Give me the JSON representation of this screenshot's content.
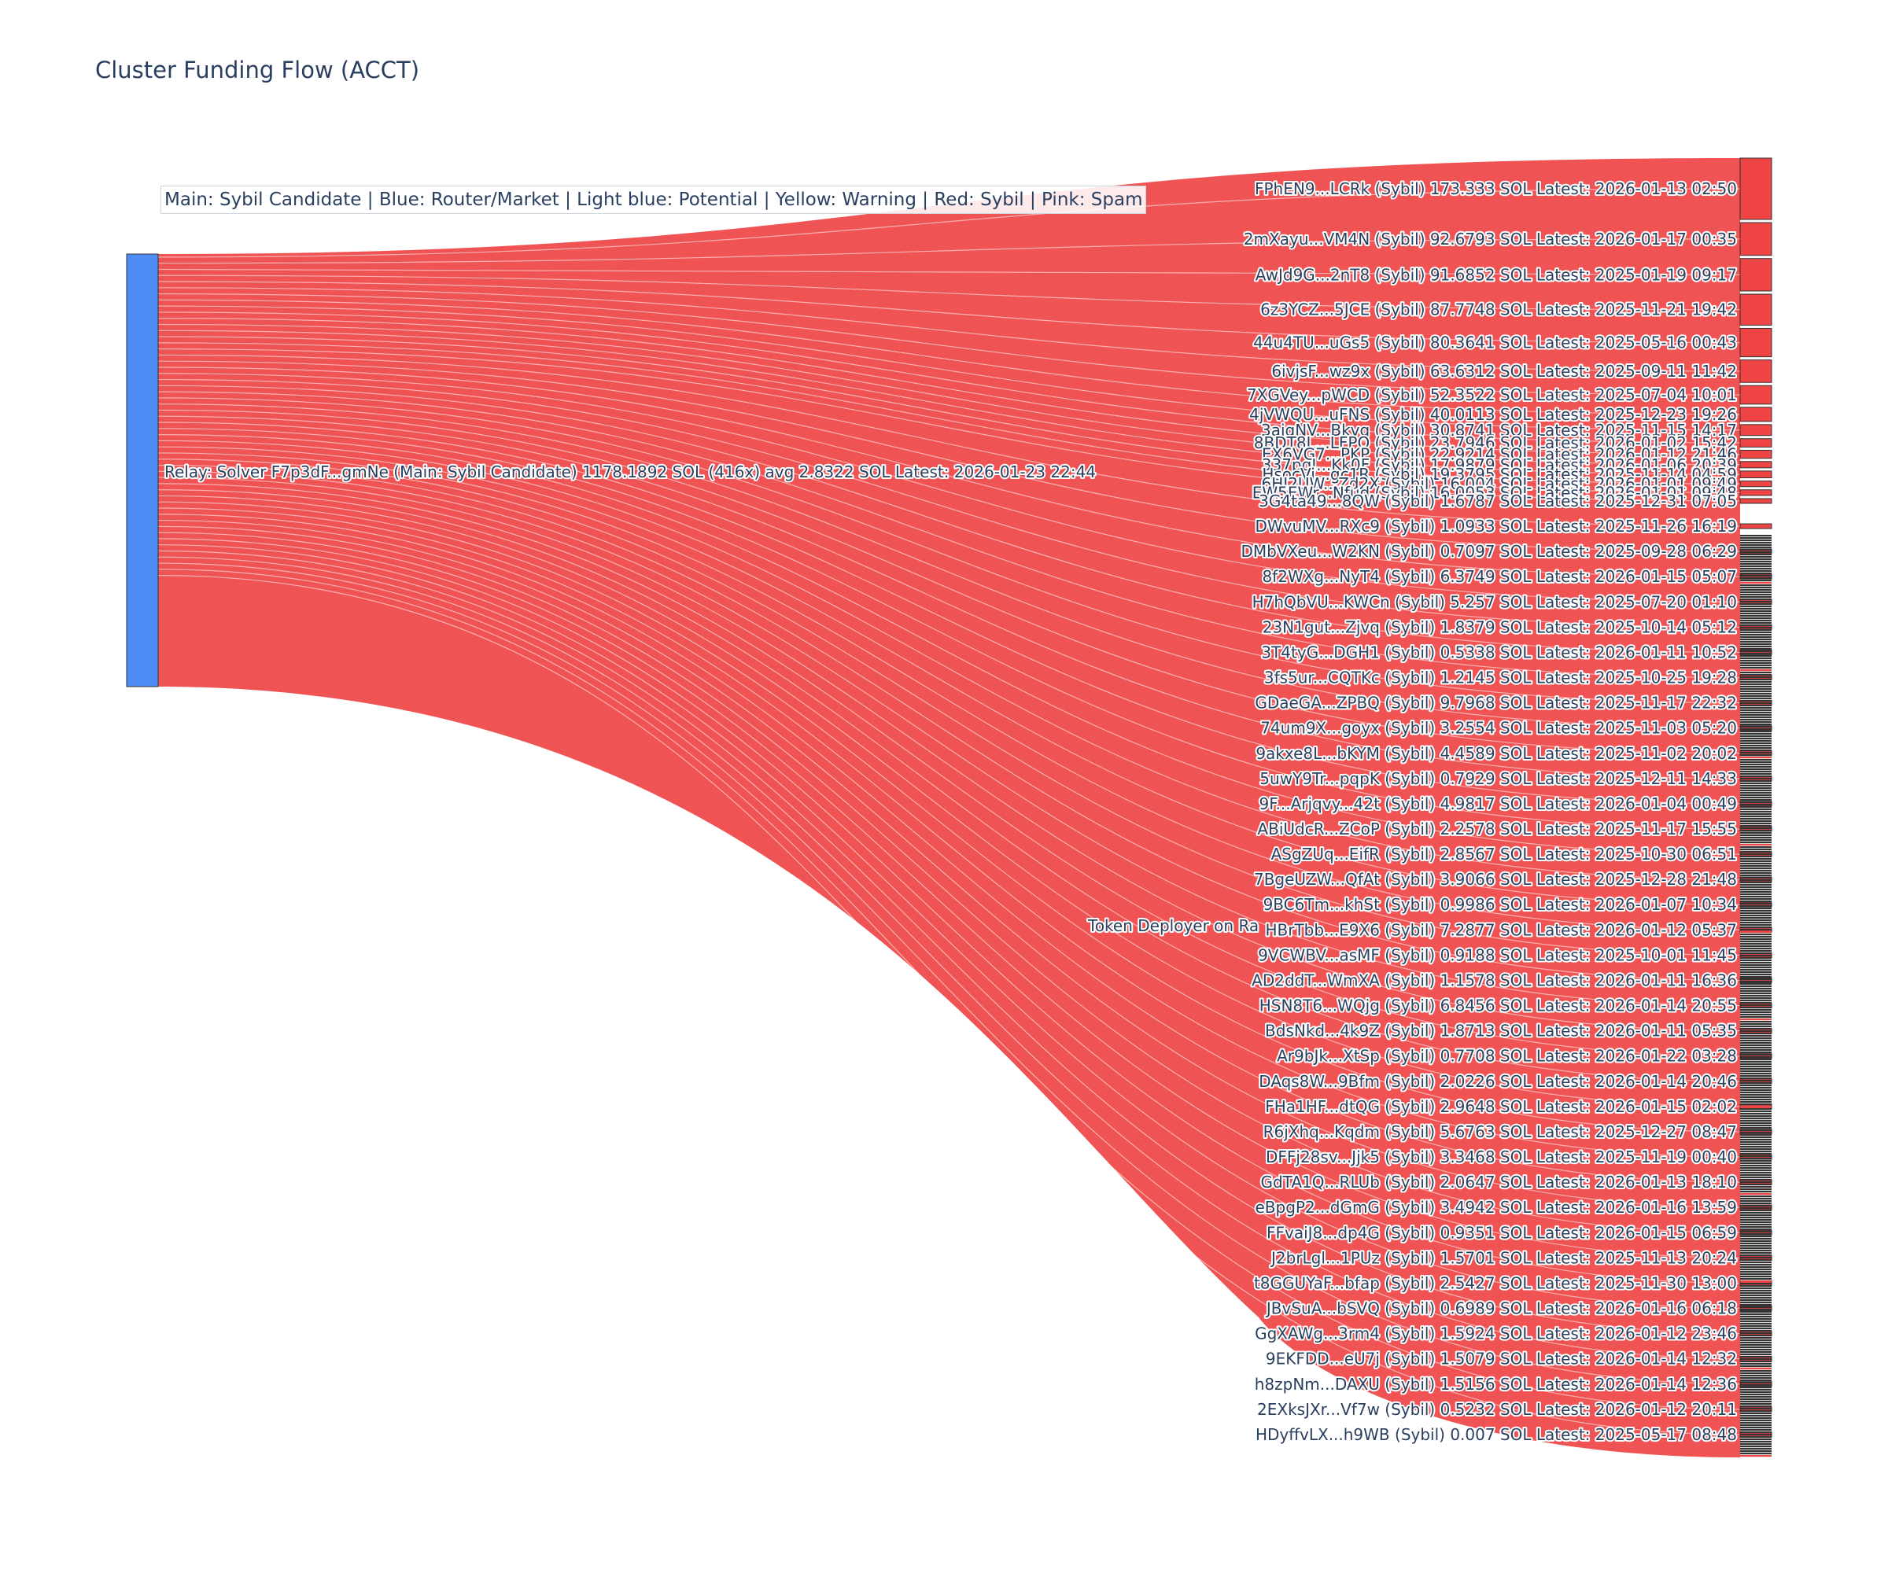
{
  "title": "Cluster Funding Flow (ACCT)",
  "legend_annotation": "Main: Sybil Candidate  |  Blue: Router/Market | Light blue: Potential | Yellow: Warning | Red: Sybil | Pink: Spam",
  "colors": {
    "source_node": "#4e8cf5",
    "link": "#ef4444",
    "target_node": "#ef4444",
    "node_border": "#333333",
    "label_text": "#2a3f5f"
  },
  "chart_data": {
    "type": "sankey",
    "source": {
      "label": "Relay: Solver F7p3dF...gmNe (Main: Sybil Candidate) 1178.1892 SOL (416x) avg 2.8322 SOL Latest: 2026-01-23 22:44",
      "total_sol": 1178.1892,
      "transfers": 416,
      "avg_sol": 2.8322
    },
    "middle_label": "Token Deployer on Ra",
    "targets": [
      {
        "label": "FPhEN9...LCRk (Sybil) 173.333 SOL Latest: 2026-01-13 02:50",
        "value": 173.333
      },
      {
        "label": "2mXayu...VM4N (Sybil) 92.6793 SOL Latest: 2026-01-17 00:35",
        "value": 92.6793
      },
      {
        "label": "AwJd9G...2nT8 (Sybil) 91.6852 SOL Latest: 2025-01-19 09:17",
        "value": 91.6852
      },
      {
        "label": "6z3YCZ...5JCE (Sybil) 87.7748 SOL Latest: 2025-11-21 19:42",
        "value": 87.7748
      },
      {
        "label": "44u4TU...uGs5 (Sybil) 80.3641 SOL Latest: 2025-05-16 00:43",
        "value": 80.3641
      },
      {
        "label": "6ivjsF...wz9x (Sybil) 63.6312 SOL Latest: 2025-09-11 11:42",
        "value": 63.6312
      },
      {
        "label": "7XGVey...pWCD (Sybil) 52.3522 SOL Latest: 2025-07-04 10:01",
        "value": 52.3522
      },
      {
        "label": "4jVWQU...uFNS (Sybil) 40.0113 SOL Latest: 2025-12-23 19:26",
        "value": 40.0113
      },
      {
        "label": "3aiqNV...Bkvg (Sybil) 30.8741 SOL Latest: 2025-11-15 14:17",
        "value": 30.8741
      },
      {
        "label": "8BDT8L...LFPQ (Sybil) 23.7946 SOL Latest: 2026-01-02 15:42",
        "value": 23.7946
      },
      {
        "label": "EX6VG7...PKP (Sybil) 22.9214 SOL Latest: 2026-01-12 21:46",
        "value": 22.9214
      },
      {
        "label": "337pqJ...Kk0F (Sybil) 17.9879 SOL Latest: 2026-01-06 20:39",
        "value": 17.9879
      },
      {
        "label": "HsocVi...gc1R (Sybil) 19.3795 SOL Latest: 2025-11-14 04:59",
        "value": 19.3795
      },
      {
        "label": "6HI2UW...Zd2X (Sybil) 16.004 SOL Latest: 2026-01-01 09:49",
        "value": 16.004
      },
      {
        "label": "EW5EWr...Nfud (Sybil) 16.0053 SOL Latest: 2026-01-01 09:48",
        "value": 16.0053
      },
      {
        "label": "3G4ta49...8QW (Sybil) 1.6787 SOL Latest: 2025-12-31 07:05",
        "value": 1.6787
      },
      {
        "label": "DWvuMV...RXc9 (Sybil) 1.0933 SOL Latest: 2025-11-26 16:19",
        "value": 1.0933
      },
      {
        "label": "DMbVXeu...W2KN (Sybil) 0.7097 SOL Latest: 2025-09-28 06:29",
        "value": 0.7097
      },
      {
        "label": "8f2WXg...NyT4 (Sybil) 6.3749 SOL Latest: 2026-01-15 05:07",
        "value": 6.3749
      },
      {
        "label": "H7hQbVU...KWCn (Sybil) 5.257 SOL Latest: 2025-07-20 01:10",
        "value": 5.257
      },
      {
        "label": "23N1gut...Zjvq (Sybil) 1.8379 SOL Latest: 2025-10-14 05:12",
        "value": 1.8379
      },
      {
        "label": "3T4tyG...DGH1 (Sybil) 0.5338 SOL Latest: 2026-01-11 10:52",
        "value": 0.5338
      },
      {
        "label": "3fs5ur...CQTKc (Sybil) 1.2145 SOL Latest: 2025-10-25 19:28",
        "value": 1.2145
      },
      {
        "label": "GDaeGA...ZPBQ (Sybil) 9.7968 SOL Latest: 2025-11-17 22:32",
        "value": 9.7968
      },
      {
        "label": "74um9X...goyx (Sybil) 3.2554 SOL Latest: 2025-11-03 05:20",
        "value": 3.2554
      },
      {
        "label": "9akxe8L...bKYM (Sybil) 4.4589 SOL Latest: 2025-11-02 20:02",
        "value": 4.4589
      },
      {
        "label": "5uwY9Tr...pqpK (Sybil) 0.7929 SOL Latest: 2025-12-11 14:33",
        "value": 0.7929
      },
      {
        "label": "9F...Arjqvy...42t (Sybil) 4.9817 SOL Latest: 2026-01-04 00:49",
        "value": 4.9817
      },
      {
        "label": "ABiUdcR...ZCoP (Sybil) 2.2578 SOL Latest: 2025-11-17 15:55",
        "value": 2.2578
      },
      {
        "label": "ASgZUq...EifR (Sybil) 2.8567 SOL Latest: 2025-10-30 06:51",
        "value": 2.8567
      },
      {
        "label": "7BgeUZW...QfAt (Sybil) 3.9066 SOL Latest: 2025-12-28 21:48",
        "value": 3.9066
      },
      {
        "label": "9BC6Tm...khSt (Sybil) 0.9986 SOL Latest: 2026-01-07 10:34",
        "value": 0.9986
      },
      {
        "label": "HBrTbb...E9X6 (Sybil) 7.2877 SOL Latest: 2026-01-12 05:37",
        "value": 7.2877
      },
      {
        "label": "9VCWBV...asMF (Sybil) 0.9188 SOL Latest: 2025-10-01 11:45",
        "value": 0.9188
      },
      {
        "label": "AD2ddT...WmXA (Sybil) 1.1578 SOL Latest: 2026-01-11 16:36",
        "value": 1.1578
      },
      {
        "label": "HSN8T6...WQjg (Sybil) 6.8456 SOL Latest: 2026-01-14 20:55",
        "value": 6.8456
      },
      {
        "label": "BdsNkd...4k9Z (Sybil) 1.8713 SOL Latest: 2026-01-11 05:35",
        "value": 1.8713
      },
      {
        "label": "Ar9bJk...XtSp (Sybil) 0.7708 SOL Latest: 2026-01-22 03:28",
        "value": 0.7708
      },
      {
        "label": "DAqs8W...9Bfm (Sybil) 2.0226 SOL Latest: 2026-01-14 20:46",
        "value": 2.0226
      },
      {
        "label": "FHa1HF...dtQG (Sybil) 2.9648 SOL Latest: 2026-01-15 02:02",
        "value": 2.9648
      },
      {
        "label": "R6jXhq...Kqdm (Sybil) 5.6763 SOL Latest: 2025-12-27 08:47",
        "value": 5.6763
      },
      {
        "label": "DFFj28sv...Jjk5 (Sybil) 3.3468 SOL Latest: 2025-11-19 00:40",
        "value": 3.3468
      },
      {
        "label": "GdTA1Q...RLUb (Sybil) 2.0647 SOL Latest: 2026-01-13 18:10",
        "value": 2.0647
      },
      {
        "label": "eBpgP2...dGmG (Sybil) 3.4942 SOL Latest: 2026-01-16 13:59",
        "value": 3.4942
      },
      {
        "label": "FFvaiJ8...dp4G (Sybil) 0.9351 SOL Latest: 2026-01-15 06:59",
        "value": 0.9351
      },
      {
        "label": "J2brLgl...1PUz (Sybil) 1.5701 SOL Latest: 2025-11-13 20:24",
        "value": 1.5701
      },
      {
        "label": "t8GGUYaF...bfap (Sybil) 2.5427 SOL Latest: 2025-11-30 13:00",
        "value": 2.5427
      },
      {
        "label": "JBvSuA...bSVQ (Sybil) 0.6989 SOL Latest: 2026-01-16 06:18",
        "value": 0.6989
      },
      {
        "label": "GgXAWg...3rm4 (Sybil) 1.5924 SOL Latest: 2026-01-12 23:46",
        "value": 1.5924
      },
      {
        "label": "9EKFDD...eU7j (Sybil) 1.5079 SOL Latest: 2026-01-14 12:32",
        "value": 1.5079
      },
      {
        "label": "h8zpNm...DAXU (Sybil) 1.5156 SOL Latest: 2026-01-14 12:36",
        "value": 1.5156
      },
      {
        "label": "2EXksJXr...Vf7w (Sybil) 0.5232 SOL Latest: 2026-01-12 20:11",
        "value": 0.5232
      },
      {
        "label": "HDyffvLX...h9WB (Sybil) 0.007 SOL Latest: 2025-05-17 08:48",
        "value": 0.007
      }
    ]
  }
}
